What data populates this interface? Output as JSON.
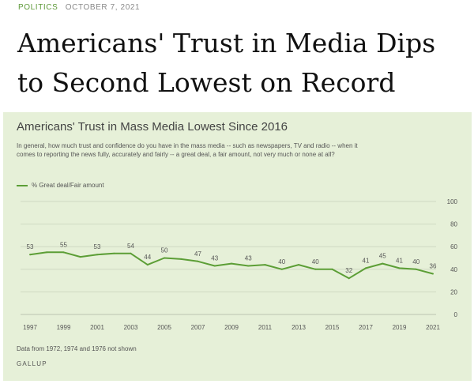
{
  "article": {
    "category": "POLITICS",
    "date": "OCTOBER 7, 2021",
    "headline": "Americans' Trust in Media Dips to Second Lowest on Record"
  },
  "chart_note": "Data from 1972, 1974 and 1976 not shown",
  "brand": "GALLUP",
  "colors": {
    "line": "#5c9e36",
    "panel": "#e6f0d8",
    "accent": "#5f9a3a"
  },
  "chart_data": {
    "type": "line",
    "title": "Americans' Trust in Mass Media Lowest Since 2016",
    "subtitle": "In general, how much trust and confidence do you have in the mass media -- such as newspapers, TV and radio -- when it comes to reporting the news fully, accurately and fairly -- a great deal, a fair amount, not very much or none at all?",
    "series": [
      {
        "name": "% Great deal/Fair amount",
        "x": [
          1997,
          1998,
          1999,
          2000,
          2001,
          2002,
          2003,
          2004,
          2005,
          2006,
          2007,
          2008,
          2009,
          2010,
          2011,
          2012,
          2013,
          2014,
          2015,
          2016,
          2017,
          2018,
          2019,
          2020,
          2021
        ],
        "values": [
          53,
          55,
          55,
          51,
          53,
          54,
          54,
          44,
          50,
          49,
          47,
          43,
          45,
          43,
          44,
          40,
          44,
          40,
          40,
          32,
          41,
          45,
          41,
          40,
          36
        ]
      }
    ],
    "labeled_points": [
      {
        "x": 1997,
        "y": 53
      },
      {
        "x": 1999,
        "y": 55
      },
      {
        "x": 2001,
        "y": 53
      },
      {
        "x": 2003,
        "y": 54
      },
      {
        "x": 2004,
        "y": 44
      },
      {
        "x": 2005,
        "y": 50
      },
      {
        "x": 2007,
        "y": 47
      },
      {
        "x": 2008,
        "y": 43
      },
      {
        "x": 2010,
        "y": 43
      },
      {
        "x": 2012,
        "y": 40
      },
      {
        "x": 2014,
        "y": 40
      },
      {
        "x": 2016,
        "y": 32
      },
      {
        "x": 2017,
        "y": 41
      },
      {
        "x": 2018,
        "y": 45
      },
      {
        "x": 2019,
        "y": 41
      },
      {
        "x": 2020,
        "y": 40
      },
      {
        "x": 2021,
        "y": 36
      }
    ],
    "x_ticks": [
      1997,
      1999,
      2001,
      2003,
      2005,
      2007,
      2009,
      2011,
      2013,
      2015,
      2017,
      2019,
      2021
    ],
    "y_ticks": [
      0,
      20,
      40,
      60,
      80,
      100
    ],
    "xlim": [
      1997,
      2021
    ],
    "ylim": [
      0,
      100
    ],
    "grid": true,
    "legend_position": "top-left"
  }
}
